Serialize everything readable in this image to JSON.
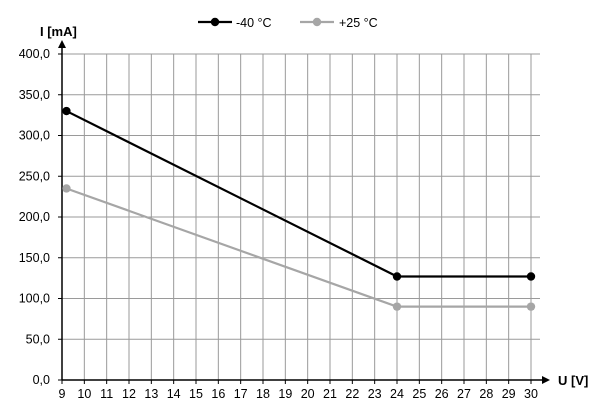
{
  "chart_data": {
    "type": "line",
    "title": "",
    "xlabel": "U [V]",
    "ylabel": "I [mA]",
    "x_ticks": [
      9,
      10,
      11,
      12,
      13,
      14,
      15,
      16,
      17,
      18,
      19,
      20,
      21,
      22,
      23,
      24,
      25,
      26,
      27,
      28,
      29,
      30
    ],
    "x_tick_labels": [
      "9",
      "10",
      "11",
      "12",
      "13",
      "14",
      "15",
      "16",
      "17",
      "18",
      "19",
      "20",
      "21",
      "22",
      "23",
      "24",
      "25",
      "26",
      "27",
      "28",
      "29",
      "30"
    ],
    "y_ticks": [
      0,
      50,
      100,
      150,
      200,
      250,
      300,
      350,
      400
    ],
    "y_tick_labels": [
      "0,0",
      "50,0",
      "100,0",
      "150,0",
      "200,0",
      "250,0",
      "300,0",
      "350,0",
      "400,0"
    ],
    "xlim": [
      9,
      30.5
    ],
    "ylim": [
      0,
      400
    ],
    "grid": true,
    "legend_position": "top-center",
    "series": [
      {
        "name": "-40 °C",
        "color": "#000000",
        "x": [
          9.2,
          24,
          30
        ],
        "y": [
          330,
          127,
          127
        ]
      },
      {
        "name": "+25 °C",
        "color": "#a6a6a6",
        "x": [
          9.2,
          24,
          30
        ],
        "y": [
          235,
          90,
          90
        ]
      }
    ]
  }
}
